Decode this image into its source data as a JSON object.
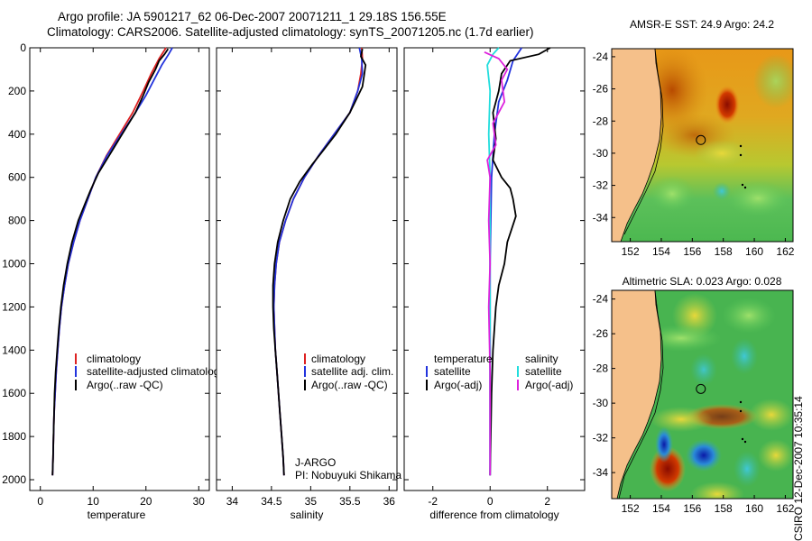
{
  "header": {
    "title_line1": "Argo profile: JA 5901217_62 06-Dec-2007 20071211_1 29.18S 156.55E",
    "title_line2": "Climatology: CARS2006. Satellite-adjusted climatology: synTS_20071205.nc (1.7d earlier)"
  },
  "side_label": "CSIRO 12-Dec-2007 10:35:14",
  "colors": {
    "climatology": "#dd2222",
    "satellite": "#2233dd",
    "argo": "#000000",
    "salinity_sat": "#22dddd",
    "salinity_argo": "#dd22dd",
    "land": "#f5c08a"
  },
  "chart_data": [
    {
      "type": "line",
      "name": "temperature-profile",
      "xlabel": "temperature",
      "xlim": [
        -2,
        32
      ],
      "ylim": [
        0,
        2050
      ],
      "xticks": [
        0,
        10,
        20,
        30
      ],
      "yticks": [
        0,
        200,
        400,
        600,
        800,
        1000,
        1200,
        1400,
        1600,
        1800,
        2000
      ],
      "legend": [
        "climatology",
        "satellite-adjusted climatology",
        "Argo(..raw -QC)"
      ],
      "series": [
        {
          "name": "climatology",
          "color": "#dd2222",
          "points": [
            [
              23.8,
              0
            ],
            [
              22.5,
              50
            ],
            [
              21.0,
              120
            ],
            [
              19.5,
              200
            ],
            [
              17.5,
              300
            ],
            [
              15.0,
              400
            ],
            [
              12.5,
              500
            ],
            [
              10.5,
              600
            ],
            [
              9.0,
              700
            ],
            [
              7.5,
              800
            ],
            [
              6.3,
              900
            ],
            [
              5.3,
              1000
            ],
            [
              4.6,
              1100
            ],
            [
              4.0,
              1200
            ],
            [
              3.6,
              1300
            ],
            [
              3.3,
              1400
            ],
            [
              3.0,
              1500
            ],
            [
              2.8,
              1600
            ],
            [
              2.6,
              1700
            ],
            [
              2.5,
              1800
            ],
            [
              2.4,
              1900
            ],
            [
              2.3,
              1980
            ]
          ]
        },
        {
          "name": "satellite-adjusted climatology",
          "color": "#2233dd",
          "points": [
            [
              25.0,
              0
            ],
            [
              24.3,
              30
            ],
            [
              23.0,
              80
            ],
            [
              21.5,
              150
            ],
            [
              20.0,
              220
            ],
            [
              18.0,
              300
            ],
            [
              15.3,
              400
            ],
            [
              12.6,
              500
            ],
            [
              10.5,
              600
            ],
            [
              9.0,
              700
            ],
            [
              7.5,
              800
            ],
            [
              6.3,
              900
            ],
            [
              5.3,
              1000
            ],
            [
              4.6,
              1100
            ],
            [
              4.0,
              1200
            ],
            [
              3.6,
              1300
            ],
            [
              3.3,
              1400
            ],
            [
              3.0,
              1500
            ],
            [
              2.8,
              1600
            ],
            [
              2.6,
              1700
            ],
            [
              2.5,
              1800
            ],
            [
              2.4,
              1900
            ],
            [
              2.3,
              1980
            ]
          ]
        },
        {
          "name": "Argo(..raw -QC)",
          "color": "#000000",
          "points": [
            [
              24.2,
              5
            ],
            [
              23.5,
              30
            ],
            [
              22.5,
              60
            ],
            [
              21.8,
              100
            ],
            [
              20.5,
              160
            ],
            [
              19.5,
              220
            ],
            [
              18.0,
              300
            ],
            [
              15.5,
              400
            ],
            [
              13.0,
              500
            ],
            [
              11.0,
              580
            ],
            [
              9.5,
              660
            ],
            [
              8.5,
              720
            ],
            [
              7.2,
              800
            ],
            [
              6.0,
              900
            ],
            [
              5.1,
              1000
            ],
            [
              4.4,
              1100
            ],
            [
              3.9,
              1200
            ],
            [
              3.5,
              1300
            ],
            [
              3.2,
              1400
            ],
            [
              2.9,
              1500
            ],
            [
              2.7,
              1600
            ],
            [
              2.6,
              1700
            ],
            [
              2.5,
              1800
            ],
            [
              2.4,
              1900
            ],
            [
              2.3,
              1980
            ]
          ]
        }
      ]
    },
    {
      "type": "line",
      "name": "salinity-profile",
      "xlabel": "salinity",
      "xlim": [
        33.8,
        36.1
      ],
      "ylim": [
        0,
        2050
      ],
      "xticks": [
        34,
        34.5,
        35,
        35.5,
        36
      ],
      "legend": [
        "climatology",
        "satellite adj. clim.",
        "Argo(..raw -QC)"
      ],
      "annotation_1": "J-ARGO",
      "annotation_2": "PI: Nobuyuki Shikama",
      "series": [
        {
          "name": "climatology",
          "color": "#dd2222",
          "points": [
            [
              35.65,
              0
            ],
            [
              35.66,
              50
            ],
            [
              35.64,
              120
            ],
            [
              35.6,
              200
            ],
            [
              35.5,
              300
            ],
            [
              35.3,
              400
            ],
            [
              35.1,
              500
            ],
            [
              34.92,
              600
            ],
            [
              34.78,
              700
            ],
            [
              34.68,
              800
            ],
            [
              34.6,
              900
            ],
            [
              34.56,
              1000
            ],
            [
              34.54,
              1100
            ],
            [
              34.53,
              1200
            ],
            [
              34.54,
              1300
            ],
            [
              34.55,
              1400
            ],
            [
              34.57,
              1500
            ],
            [
              34.59,
              1600
            ],
            [
              34.61,
              1700
            ],
            [
              34.63,
              1800
            ],
            [
              34.65,
              1900
            ],
            [
              34.66,
              1980
            ]
          ]
        },
        {
          "name": "satellite adj. clim.",
          "color": "#2233dd",
          "points": [
            [
              35.62,
              0
            ],
            [
              35.65,
              50
            ],
            [
              35.66,
              120
            ],
            [
              35.6,
              200
            ],
            [
              35.5,
              300
            ],
            [
              35.3,
              400
            ],
            [
              35.1,
              500
            ],
            [
              34.92,
              600
            ],
            [
              34.78,
              700
            ],
            [
              34.68,
              800
            ],
            [
              34.6,
              900
            ],
            [
              34.56,
              1000
            ],
            [
              34.54,
              1100
            ],
            [
              34.53,
              1200
            ],
            [
              34.54,
              1300
            ],
            [
              34.55,
              1400
            ],
            [
              34.57,
              1500
            ],
            [
              34.59,
              1600
            ],
            [
              34.61,
              1700
            ],
            [
              34.63,
              1800
            ],
            [
              34.65,
              1900
            ],
            [
              34.66,
              1980
            ]
          ]
        },
        {
          "name": "Argo(..raw -QC)",
          "color": "#000000",
          "points": [
            [
              35.66,
              5
            ],
            [
              35.64,
              40
            ],
            [
              35.7,
              80
            ],
            [
              35.68,
              130
            ],
            [
              35.66,
              180
            ],
            [
              35.58,
              240
            ],
            [
              35.5,
              300
            ],
            [
              35.32,
              400
            ],
            [
              35.15,
              480
            ],
            [
              35.02,
              540
            ],
            [
              34.86,
              620
            ],
            [
              34.74,
              700
            ],
            [
              34.65,
              800
            ],
            [
              34.58,
              900
            ],
            [
              34.54,
              1000
            ],
            [
              34.52,
              1100
            ],
            [
              34.52,
              1200
            ],
            [
              34.53,
              1300
            ],
            [
              34.55,
              1400
            ],
            [
              34.57,
              1500
            ],
            [
              34.59,
              1600
            ],
            [
              34.61,
              1700
            ],
            [
              34.63,
              1800
            ],
            [
              34.65,
              1900
            ],
            [
              34.66,
              1980
            ]
          ]
        }
      ]
    },
    {
      "type": "line",
      "name": "difference-profile",
      "xlabel": "difference from climatology",
      "xlim": [
        -3,
        3.3
      ],
      "ylim": [
        0,
        2050
      ],
      "xticks": [
        -2,
        0,
        2
      ],
      "legend_left_title": "temperature",
      "legend_right_title": "salinity",
      "legend": [
        "satellite",
        "Argo(-adj)",
        "satellite",
        "Argo(-adj)"
      ],
      "series": [
        {
          "name": "temperature satellite",
          "color": "#2233dd",
          "points": [
            [
              1.1,
              0
            ],
            [
              0.8,
              60
            ],
            [
              0.6,
              150
            ],
            [
              0.3,
              250
            ],
            [
              0.15,
              400
            ],
            [
              0.05,
              600
            ],
            [
              0.0,
              1000
            ],
            [
              0.0,
              1980
            ]
          ]
        },
        {
          "name": "temperature Argo(-adj)",
          "color": "#000000",
          "points": [
            [
              2.1,
              0
            ],
            [
              1.7,
              30
            ],
            [
              0.7,
              60
            ],
            [
              0.4,
              120
            ],
            [
              0.3,
              200
            ],
            [
              0.1,
              300
            ],
            [
              0.2,
              420
            ],
            [
              0.1,
              520
            ],
            [
              0.4,
              600
            ],
            [
              0.7,
              650
            ],
            [
              0.8,
              700
            ],
            [
              0.9,
              780
            ],
            [
              0.6,
              900
            ],
            [
              0.5,
              1000
            ],
            [
              0.3,
              1100
            ],
            [
              0.2,
              1200
            ],
            [
              0.1,
              1400
            ],
            [
              0.05,
              1600
            ],
            [
              0.0,
              1980
            ]
          ]
        },
        {
          "name": "salinity satellite",
          "color": "#22dddd",
          "points": [
            [
              0.3,
              0
            ],
            [
              0.1,
              30
            ],
            [
              -0.1,
              80
            ],
            [
              0.0,
              200
            ],
            [
              -0.05,
              400
            ],
            [
              0.0,
              600
            ],
            [
              0.0,
              1000
            ],
            [
              0.0,
              1980
            ]
          ]
        },
        {
          "name": "salinity Argo(-adj)",
          "color": "#dd22dd",
          "points": [
            [
              -0.2,
              20
            ],
            [
              0.3,
              50
            ],
            [
              0.6,
              100
            ],
            [
              0.4,
              150
            ],
            [
              0.5,
              250
            ],
            [
              0.1,
              350
            ],
            [
              0.2,
              450
            ],
            [
              -0.1,
              520
            ],
            [
              0.0,
              600
            ],
            [
              -0.05,
              800
            ],
            [
              0.0,
              1000
            ],
            [
              -0.05,
              1200
            ],
            [
              0.0,
              1500
            ],
            [
              0.0,
              1980
            ]
          ]
        }
      ]
    },
    {
      "type": "heatmap",
      "name": "sst-map",
      "title": "AMSR-E SST: 24.9 Argo: 24.2",
      "xlim": [
        150.8,
        162.5
      ],
      "ylim": [
        -35.5,
        -23.5
      ],
      "xticks": [
        152,
        154,
        156,
        158,
        160,
        162
      ],
      "yticks": [
        -24,
        -26,
        -28,
        -30,
        -32,
        -34
      ],
      "marker": {
        "lon": 156.55,
        "lat": -29.18
      }
    },
    {
      "type": "heatmap",
      "name": "sla-map",
      "title": "Altimetric SLA: 0.023 Argo: 0.028",
      "xlim": [
        150.8,
        162.5
      ],
      "ylim": [
        -35.5,
        -23.5
      ],
      "xticks": [
        152,
        154,
        156,
        158,
        160,
        162
      ],
      "yticks": [
        -24,
        -26,
        -28,
        -30,
        -32,
        -34
      ],
      "marker": {
        "lon": 156.55,
        "lat": -29.18
      }
    }
  ]
}
